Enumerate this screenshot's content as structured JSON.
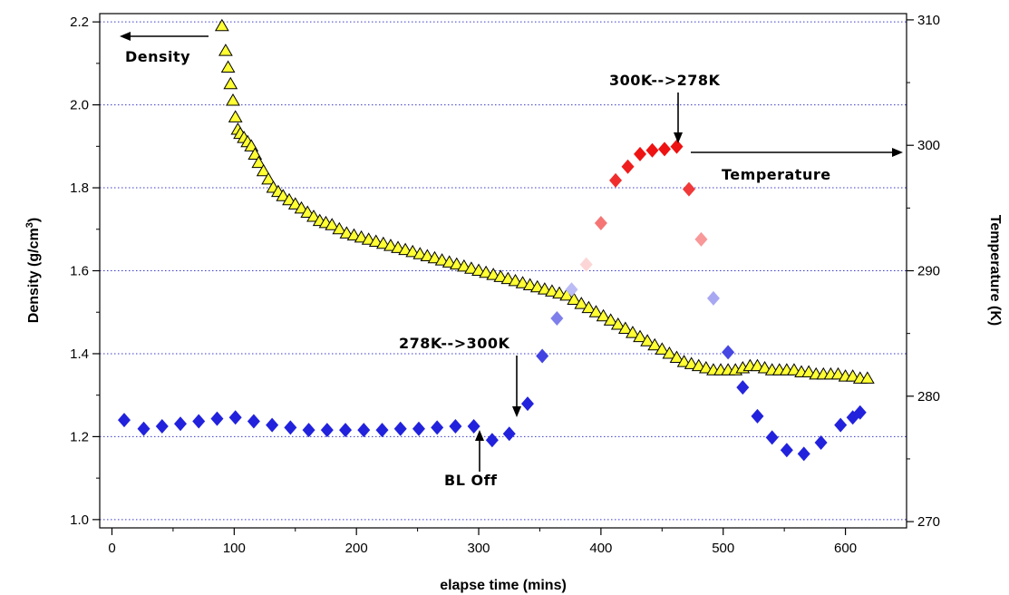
{
  "chart_data": {
    "type": "scatter",
    "xlabel": "elapse time (mins)",
    "ylabel": "Density (g/cm",
    "ylabel_sup": "3",
    "ylabel_close": ")",
    "y2label": "Temperature (K)",
    "xlim": [
      -10,
      650
    ],
    "ylim": [
      0.98,
      2.22
    ],
    "y2lim": [
      269.5,
      310.5
    ],
    "x_ticks": [
      0,
      100,
      200,
      300,
      400,
      500,
      600
    ],
    "x_tick_labels": [
      "0",
      "100",
      "200",
      "300",
      "400",
      "500",
      "600"
    ],
    "y_ticks": [
      1.0,
      1.2,
      1.4,
      1.6,
      1.8,
      2.0,
      2.2
    ],
    "y_tick_labels": [
      "1.0",
      "1.2",
      "1.4",
      "1.6",
      "1.8",
      "2.0",
      "2.2"
    ],
    "y2_ticks": [
      270,
      280,
      290,
      300,
      310
    ],
    "y2_tick_labels": [
      "270",
      "280",
      "290",
      "300",
      "310"
    ],
    "grid": "horizontal dotted",
    "series": [
      {
        "axis": "left",
        "marker": "triangle",
        "color": "#ffff33",
        "x": [
          90,
          93,
          95,
          97,
          99,
          101,
          103,
          105,
          108,
          111,
          114,
          117,
          120,
          124,
          128,
          132,
          136,
          140,
          145,
          150,
          155,
          160,
          165,
          170,
          175,
          180,
          186,
          192,
          198,
          204,
          210,
          216,
          222,
          228,
          234,
          240,
          246,
          252,
          258,
          264,
          270,
          276,
          282,
          288,
          294,
          300,
          306,
          312,
          318,
          324,
          330,
          336,
          342,
          348,
          354,
          360,
          366,
          372,
          378,
          384,
          390,
          396,
          402,
          408,
          414,
          420,
          426,
          432,
          438,
          444,
          450,
          456,
          462,
          468,
          474,
          480,
          486,
          492,
          498,
          504,
          510,
          516,
          522,
          528,
          534,
          540,
          546,
          552,
          558,
          564,
          570,
          576,
          582,
          588,
          594,
          600,
          606,
          612,
          618
        ],
        "y": [
          2.19,
          2.13,
          2.09,
          2.05,
          2.01,
          1.97,
          1.94,
          1.93,
          1.92,
          1.91,
          1.9,
          1.88,
          1.86,
          1.84,
          1.82,
          1.8,
          1.79,
          1.78,
          1.77,
          1.76,
          1.75,
          1.74,
          1.73,
          1.72,
          1.715,
          1.71,
          1.7,
          1.69,
          1.685,
          1.68,
          1.675,
          1.67,
          1.665,
          1.66,
          1.655,
          1.65,
          1.645,
          1.64,
          1.635,
          1.63,
          1.625,
          1.62,
          1.615,
          1.61,
          1.605,
          1.6,
          1.595,
          1.59,
          1.585,
          1.58,
          1.575,
          1.57,
          1.565,
          1.56,
          1.555,
          1.55,
          1.545,
          1.54,
          1.53,
          1.52,
          1.51,
          1.5,
          1.49,
          1.48,
          1.47,
          1.46,
          1.45,
          1.44,
          1.43,
          1.42,
          1.41,
          1.4,
          1.39,
          1.38,
          1.375,
          1.37,
          1.365,
          1.36,
          1.36,
          1.36,
          1.36,
          1.365,
          1.37,
          1.37,
          1.365,
          1.36,
          1.36,
          1.36,
          1.36,
          1.355,
          1.355,
          1.35,
          1.35,
          1.35,
          1.35,
          1.345,
          1.345,
          1.34,
          1.34
        ]
      },
      {
        "axis": "right",
        "marker": "diamond",
        "color": "#2222dd",
        "color_hot": "#ee1111",
        "x": [
          10,
          26,
          41,
          56,
          71,
          86,
          101,
          116,
          131,
          146,
          161,
          176,
          191,
          206,
          221,
          236,
          251,
          266,
          281,
          296,
          311,
          325,
          340,
          352,
          364,
          376,
          388,
          400,
          412,
          422,
          432,
          442,
          452,
          462,
          472,
          482,
          492,
          504,
          516,
          528,
          540,
          552,
          566,
          580,
          596,
          606,
          612
        ],
        "y": [
          278.1,
          277.4,
          277.6,
          277.8,
          278.0,
          278.2,
          278.3,
          278.0,
          277.7,
          277.5,
          277.3,
          277.3,
          277.3,
          277.3,
          277.3,
          277.4,
          277.4,
          277.5,
          277.6,
          277.6,
          276.5,
          277.0,
          279.4,
          283.2,
          286.2,
          288.5,
          290.5,
          293.8,
          297.2,
          298.3,
          299.3,
          299.6,
          299.7,
          299.9,
          296.5,
          292.5,
          287.8,
          283.5,
          280.7,
          278.4,
          276.7,
          275.7,
          275.4,
          276.3,
          277.7,
          278.3,
          278.7
        ]
      }
    ],
    "annotations": {
      "density": "Density",
      "temperature": "Temperature",
      "heat_up": "278K-->300K",
      "cool_down": "300K-->278K",
      "bl_off": "BL Off"
    }
  }
}
